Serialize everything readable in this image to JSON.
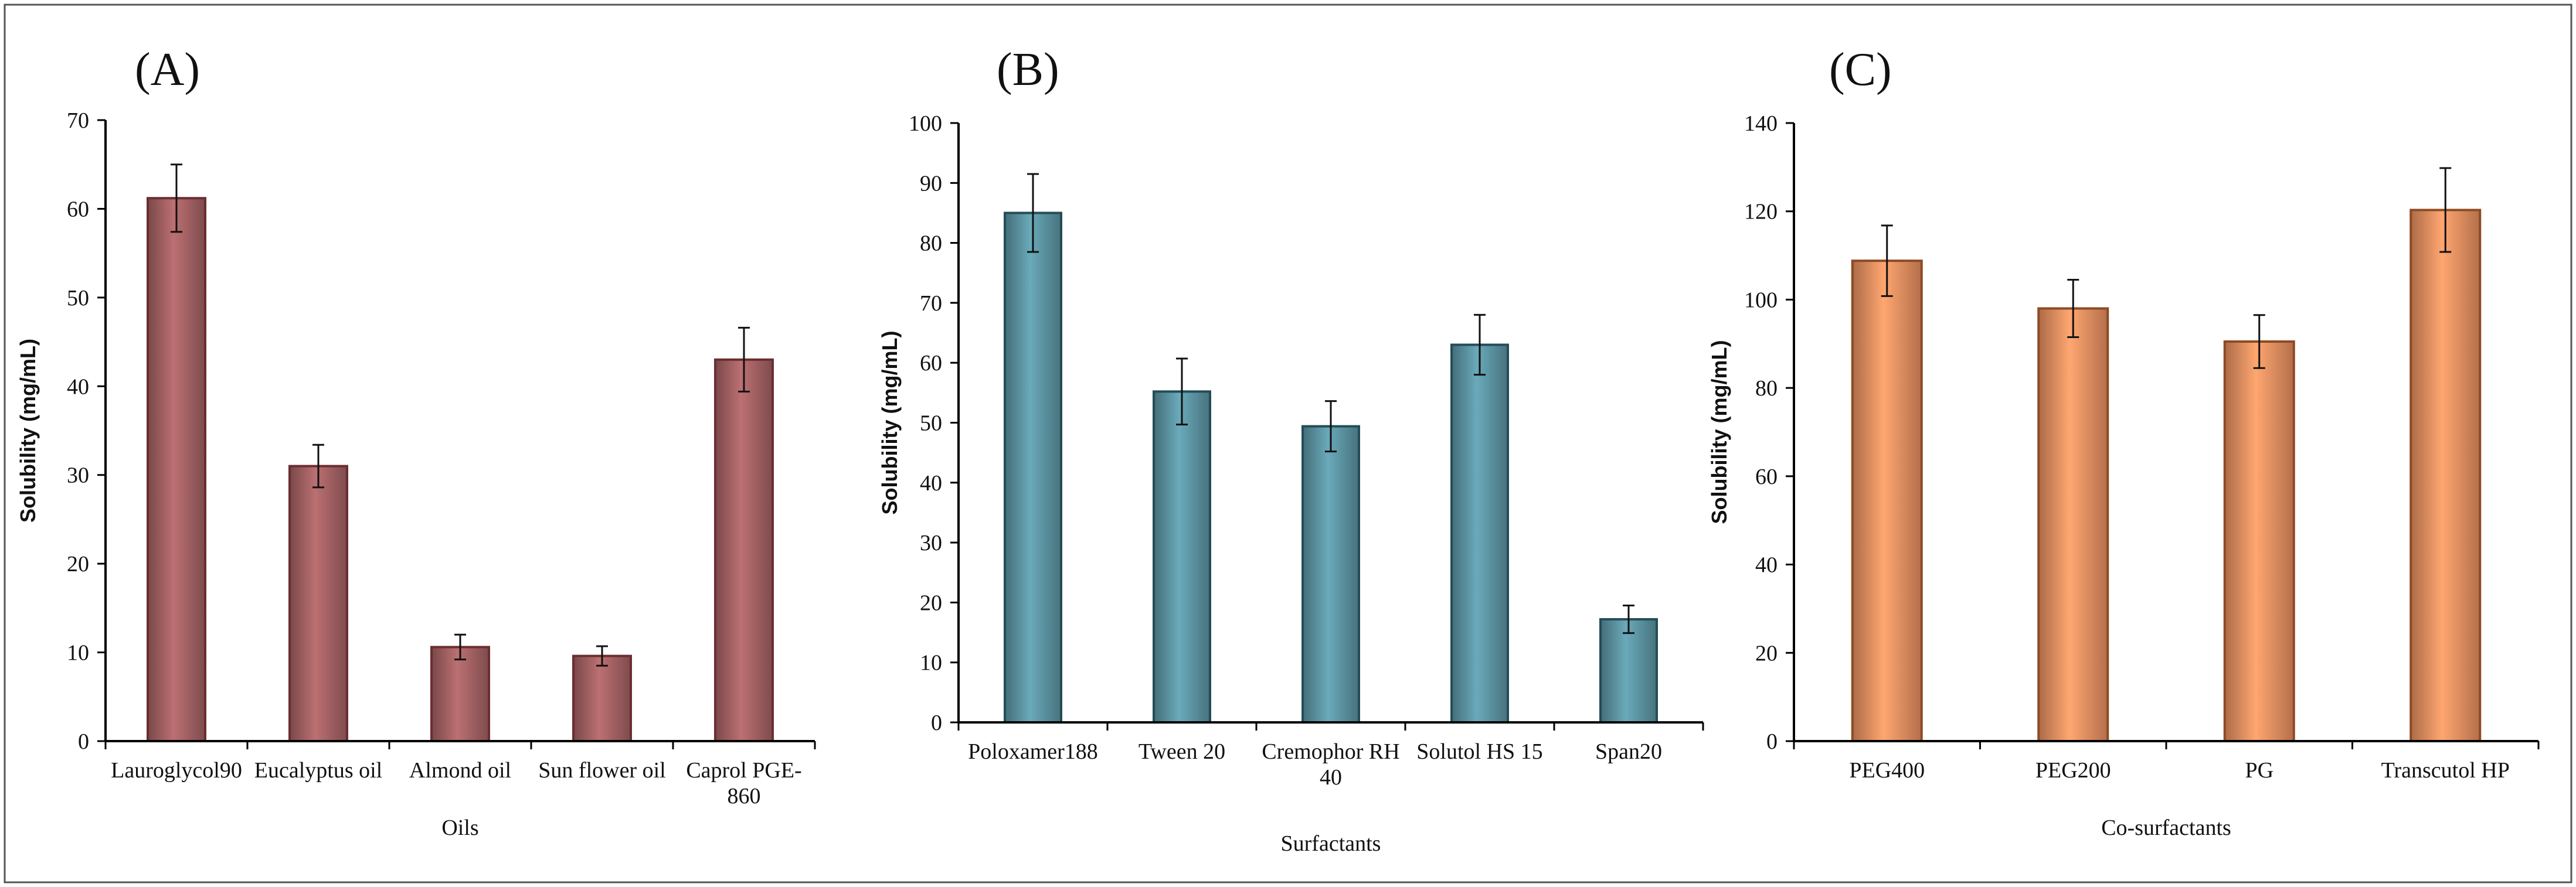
{
  "chart_data": [
    {
      "type": "bar",
      "panel": "(A)",
      "title": "",
      "xlabel": "Oils",
      "ylabel": "Solubility   (mg/mL)",
      "ylim": [
        0,
        70
      ],
      "ytick_step": 10,
      "categories": [
        [
          "Lauroglycol90"
        ],
        [
          "Eucalyptus oil"
        ],
        [
          "Almond oil"
        ],
        [
          "Sun flower oil"
        ],
        [
          "Caprol PGE-",
          "860"
        ]
      ],
      "values": [
        61.2,
        31.0,
        10.6,
        9.6,
        43.0
      ],
      "errors": [
        3.8,
        2.4,
        1.4,
        1.1,
        3.6
      ],
      "color": "#a86466",
      "edge": "#6b2e30",
      "grid": false
    },
    {
      "type": "bar",
      "panel": "(B)",
      "title": "",
      "xlabel": "Surfactants",
      "ylabel": "Solubility   (mg/mL)",
      "ylim": [
        0,
        100
      ],
      "ytick_step": 10,
      "categories": [
        [
          "Poloxamer188"
        ],
        [
          "Tween 20"
        ],
        [
          "Cremophor RH",
          "40"
        ],
        [
          "Solutol HS 15"
        ],
        [
          "Span20"
        ]
      ],
      "values": [
        85.0,
        55.2,
        49.4,
        63.0,
        17.2
      ],
      "errors": [
        6.5,
        5.5,
        4.2,
        5.0,
        2.3
      ],
      "color": "#5f98a6",
      "edge": "#234d57",
      "grid": false
    },
    {
      "type": "bar",
      "panel": "(C)",
      "title": "",
      "xlabel": "Co-surfactants",
      "ylabel": "Solubility   (mg/mL)",
      "ylim": [
        0,
        140
      ],
      "ytick_step": 20,
      "categories": [
        [
          "PEG400"
        ],
        [
          "PEG200"
        ],
        [
          "PG"
        ],
        [
          "Transcutol HP"
        ]
      ],
      "values": [
        108.8,
        98.0,
        90.5,
        120.3
      ],
      "errors": [
        8.0,
        6.5,
        6.0,
        9.5
      ],
      "color": "#ee9464",
      "edge": "#8e4a22",
      "grid": false
    }
  ]
}
